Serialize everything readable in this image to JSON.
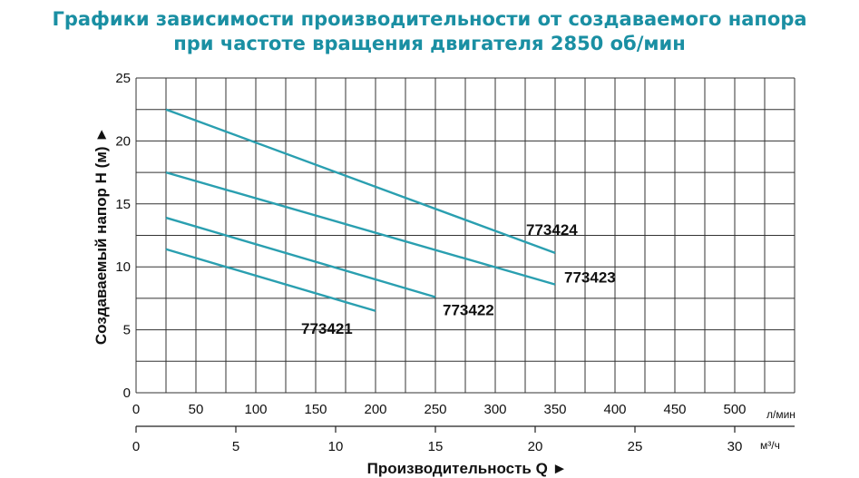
{
  "title_line1": "Графики зависимости производительности от создаваемого напора",
  "title_line2": "при частоте вращения двигателя 2850 об/мин",
  "chart_data": {
    "type": "line",
    "ylabel": "Создаваемый напор H (м) ►",
    "xlabel": "Производительность Q ►",
    "x_unit_primary": "л/мин",
    "x_unit_secondary": "м³/ч",
    "xlim": [
      0,
      550
    ],
    "ylim": [
      0,
      25
    ],
    "x_ticks": [
      "0",
      "50",
      "100",
      "150",
      "200",
      "250",
      "300",
      "350",
      "400",
      "450",
      "500"
    ],
    "y_ticks": [
      "0",
      "5",
      "10",
      "15",
      "20",
      "25"
    ],
    "x2_ticks": [
      "0",
      "5",
      "10",
      "15",
      "20",
      "25",
      "30"
    ],
    "x2_values": [
      0,
      5,
      10,
      15,
      20,
      25,
      30
    ],
    "grid": true,
    "series": [
      {
        "name": "773421",
        "x": [
          25,
          200
        ],
        "y": [
          11.4,
          6.5
        ]
      },
      {
        "name": "773422",
        "x": [
          25,
          250
        ],
        "y": [
          13.9,
          7.6
        ]
      },
      {
        "name": "773423",
        "x": [
          25,
          350
        ],
        "y": [
          17.5,
          8.6
        ]
      },
      {
        "name": "773424",
        "x": [
          25,
          350
        ],
        "y": [
          22.5,
          11.1
        ]
      }
    ],
    "line_color": "#2a9fb0"
  }
}
